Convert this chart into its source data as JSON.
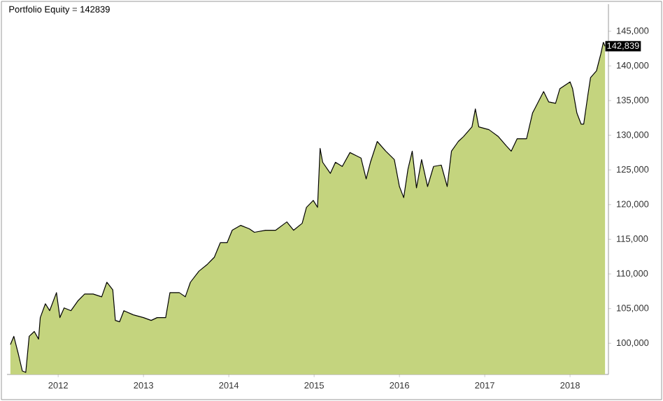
{
  "chart_data": {
    "type": "area",
    "title": "Portfolio Equity = 142839",
    "x": [
      2011.44,
      2011.48,
      2011.53,
      2011.58,
      2011.62,
      2011.66,
      2011.72,
      2011.77,
      2011.79,
      2011.85,
      2011.9,
      2011.98,
      2012.02,
      2012.07,
      2012.15,
      2012.23,
      2012.31,
      2012.41,
      2012.51,
      2012.57,
      2012.64,
      2012.67,
      2012.72,
      2012.77,
      2012.88,
      2013.0,
      2013.09,
      2013.16,
      2013.26,
      2013.31,
      2013.42,
      2013.49,
      2013.55,
      2013.65,
      2013.75,
      2013.83,
      2013.9,
      2013.98,
      2014.04,
      2014.14,
      2014.24,
      2014.3,
      2014.43,
      2014.55,
      2014.68,
      2014.76,
      2014.86,
      2014.91,
      2014.99,
      2015.04,
      2015.07,
      2015.1,
      2015.19,
      2015.25,
      2015.33,
      2015.42,
      2015.55,
      2015.61,
      2015.66,
      2015.74,
      2015.84,
      2015.94,
      2016.0,
      2016.05,
      2016.1,
      2016.15,
      2016.2,
      2016.26,
      2016.33,
      2016.4,
      2016.49,
      2016.56,
      2016.61,
      2016.69,
      2016.75,
      2016.85,
      2016.89,
      2016.93,
      2017.05,
      2017.16,
      2017.25,
      2017.31,
      2017.38,
      2017.49,
      2017.56,
      2017.69,
      2017.75,
      2017.83,
      2017.88,
      2018.0,
      2018.03,
      2018.08,
      2018.13,
      2018.16,
      2018.21,
      2018.24,
      2018.31,
      2018.36,
      2018.39,
      2018.41
    ],
    "series": [
      {
        "color": "#000000",
        "values": [
          99800,
          101000,
          98600,
          96000,
          95800,
          101000,
          101700,
          100600,
          103700,
          105700,
          104700,
          107300,
          103700,
          105100,
          104700,
          106100,
          107100,
          107100,
          106700,
          108800,
          107700,
          103300,
          103100,
          104700,
          104100,
          103700,
          103300,
          103700,
          103700,
          107300,
          107300,
          106700,
          108800,
          110400,
          111400,
          112400,
          114500,
          114500,
          116300,
          117000,
          116500,
          116000,
          116300,
          116300,
          117500,
          116300,
          117300,
          119600,
          120600,
          119600,
          128100,
          126100,
          124500,
          126100,
          125500,
          127500,
          126700,
          123700,
          126100,
          129100,
          127700,
          126500,
          122600,
          121000,
          125100,
          127700,
          122400,
          126500,
          122600,
          125500,
          125700,
          122600,
          127700,
          129100,
          129800,
          131200,
          133800,
          131200,
          130800,
          129800,
          128500,
          127700,
          129500,
          129500,
          133200,
          136300,
          134800,
          134600,
          136700,
          137700,
          136700,
          133200,
          131600,
          131600,
          135900,
          138300,
          139300,
          141700,
          143400,
          142839
        ]
      }
    ],
    "xlim": [
      2011.4,
      2018.45
    ],
    "ylim": [
      95500,
      148900
    ],
    "xticks": [
      2012,
      2013,
      2014,
      2015,
      2016,
      2017,
      2018
    ],
    "yticks": [
      {
        "value": 100000,
        "label": "100,000"
      },
      {
        "value": 105000,
        "label": "105,000"
      },
      {
        "value": 110000,
        "label": "110,000"
      },
      {
        "value": 115000,
        "label": "115,000"
      },
      {
        "value": 120000,
        "label": "120,000"
      },
      {
        "value": 125000,
        "label": "125,000"
      },
      {
        "value": 130000,
        "label": "130,000"
      },
      {
        "value": 135000,
        "label": "135,000"
      },
      {
        "value": 140000,
        "label": "140,000"
      },
      {
        "value": 145000,
        "label": "145,000"
      }
    ],
    "annotations": [
      {
        "text": "142,839",
        "x": 2018.41,
        "y": 142839
      }
    ],
    "grid": false
  }
}
